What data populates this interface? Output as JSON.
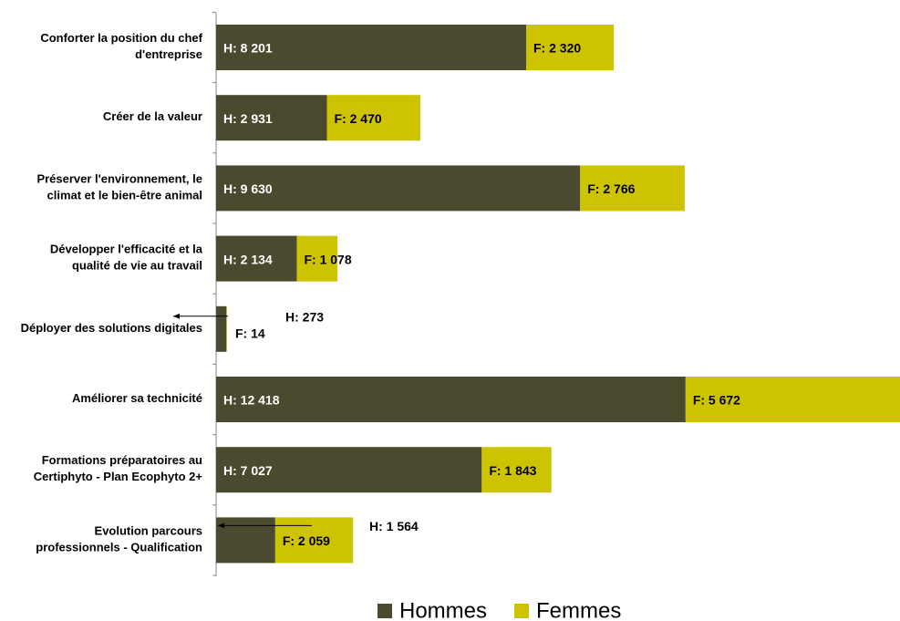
{
  "chart_data": {
    "type": "stacked-bar-horizontal",
    "categories": [
      "Conforter la position du chef\nd'entreprise",
      "Créer de la valeur",
      "Préserver l'environnement, le\nclimat et le bien-être animal",
      "Développer l'efficacité et la\nqualité de vie au travail",
      "Déployer des solutions digitales",
      "Améliorer sa technicité",
      "Formations préparatoires au\nCertiphyto - Plan Ecophyto 2+",
      "Evolution parcours\nprofessionnels - Qualification"
    ],
    "series": [
      {
        "name": "Hommes",
        "color": "#4a4a2f",
        "values": [
          8201,
          2931,
          9630,
          2134,
          273,
          12418,
          7027,
          1564
        ],
        "value_labels": [
          "H: 8 201",
          "H: 2 931",
          "H: 9 630",
          "H: 2 134",
          "H:  273",
          "H: 12 418",
          "H: 7 027",
          "H: 1 564"
        ]
      },
      {
        "name": "Femmes",
        "color": "#cdc300",
        "values": [
          2320,
          2470,
          2766,
          1078,
          14,
          5672,
          1843,
          2059
        ],
        "value_labels": [
          "F: 2 320",
          "F: 2 470",
          "F: 2 766",
          "F: 1 078",
          "F:  14",
          "F: 5 672",
          "F: 1 843",
          "F: 2 059"
        ]
      }
    ],
    "xlim": [
      0,
      18090
    ],
    "legend": "bottom"
  }
}
